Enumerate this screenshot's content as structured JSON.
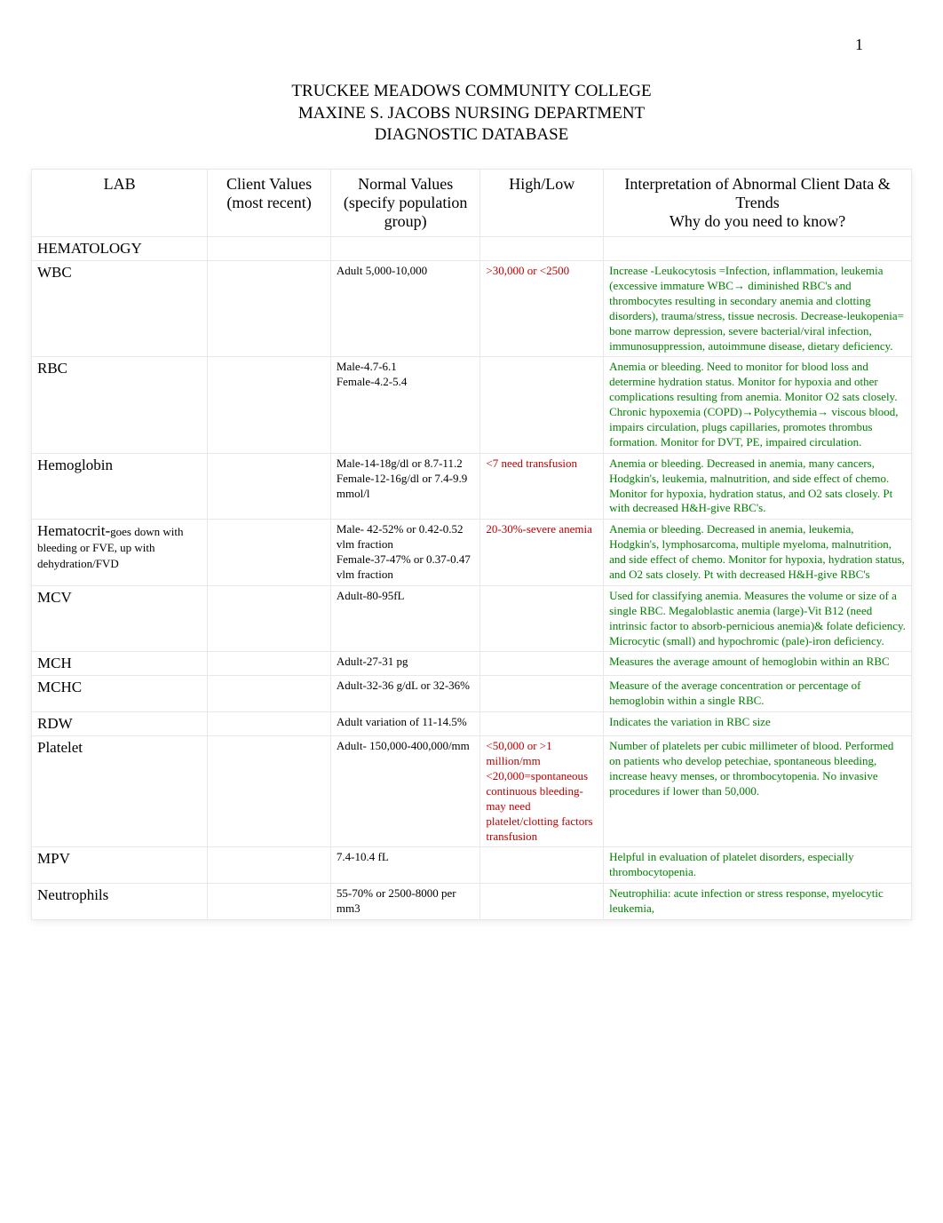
{
  "page_number": "1",
  "header": {
    "line1": "TRUCKEE MEADOWS COMMUNITY COLLEGE",
    "line2": "MAXINE S. JACOBS NURSING DEPARTMENT",
    "line3": "DIAGNOSTIC DATABASE"
  },
  "columns": {
    "lab": "LAB",
    "client": "Client Values (most recent)",
    "normal": "Normal Values (specify population group)",
    "highlow": "High/Low",
    "interp": "Interpretation of Abnormal Client Data & Trends\nWhy do you need to know?"
  },
  "section_hematology": "HEMATOLOGY",
  "rows": [
    {
      "lab": "WBC",
      "lab_sub": "",
      "client": "",
      "normal": "Adult 5,000-10,000",
      "highlow": ">30,000 or <2500",
      "highlow_color": "#c00000",
      "interp": " Increase -Leukocytosis =Infection, inflammation, leukemia (excessive immature WBC→ diminished RBC's and thrombocytes resulting in secondary anemia and clotting disorders), trauma/stress, tissue necrosis. Decrease-leukopenia= bone marrow depression, severe bacterial/viral infection, immunosuppression, autoimmune disease, dietary deficiency.",
      "interp_color": "#008000"
    },
    {
      "lab": "RBC",
      "lab_sub": "",
      "client": "",
      "normal": "Male-4.7-6.1\nFemale-4.2-5.4",
      "highlow": "",
      "highlow_color": "#c00000",
      "interp": "Anemia or bleeding. Need to monitor for blood loss and determine hydration status. Monitor for hypoxia and other complications resulting from anemia. Monitor O2 sats closely.\nChronic hypoxemia (COPD)→Polycythemia→ viscous blood, impairs circulation, plugs capillaries, promotes thrombus formation. Monitor for DVT, PE, impaired circulation.",
      "interp_color": "#008000"
    },
    {
      "lab": "Hemoglobin",
      "lab_sub": "",
      "client": "",
      "normal": "Male-14-18g/dl or 8.7-11.2\nFemale-12-16g/dl or 7.4-9.9 mmol/l",
      "highlow": "<7 need transfusion",
      "highlow_color": "#c00000",
      "interp": "Anemia or bleeding. Decreased in anemia, many cancers, Hodgkin's, leukemia, malnutrition, and side effect of chemo. Monitor for hypoxia, hydration status, and O2 sats closely. Pt with decreased H&H-give RBC's.",
      "interp_color": "#008000"
    },
    {
      "lab": "Hematocrit-",
      "lab_sub": "goes down with bleeding or FVE, up with dehydration/FVD",
      "client": "",
      "normal": "Male- 42-52% or 0.42-0.52 vlm fraction\nFemale-37-47% or 0.37-0.47 vlm fraction",
      "highlow": " 20-30%-severe anemia",
      "highlow_color": "#c00000",
      "interp": "Anemia or bleeding. Decreased in anemia, leukemia, Hodgkin's, lymphosarcoma, multiple myeloma, malnutrition, and side effect of chemo. Monitor for hypoxia, hydration status, and O2 sats closely. Pt with decreased H&H-give RBC's",
      "interp_color": "#008000"
    },
    {
      "lab": "MCV",
      "lab_sub": "",
      "client": "",
      "normal": "Adult-80-95fL",
      "highlow": "",
      "highlow_color": "#c00000",
      "interp": "Used for classifying anemia. Measures the volume or size of a single RBC. Megaloblastic anemia (large)-Vit B12 (need intrinsic factor to absorb-pernicious anemia)& folate deficiency. Microcytic (small) and hypochromic (pale)-iron deficiency.",
      "interp_color": "#008000"
    },
    {
      "lab": "MCH",
      "lab_sub": "",
      "client": "",
      "normal": "Adult-27-31 pg",
      "highlow": "",
      "highlow_color": "#c00000",
      "interp": "Measures the average amount of hemoglobin within an RBC",
      "interp_color": "#008000"
    },
    {
      "lab": "MCHC",
      "lab_sub": "",
      "client": "",
      "normal": "Adult-32-36 g/dL or 32-36%",
      "highlow": "",
      "highlow_color": "#c00000",
      "interp": "Measure of the average concentration or percentage of hemoglobin within a single RBC.",
      "interp_color": "#008000"
    },
    {
      "lab": "RDW",
      "lab_sub": "",
      "client": "",
      "normal": "Adult variation of 11-14.5%",
      "highlow": "",
      "highlow_color": "#c00000",
      "interp": "Indicates the variation in RBC size",
      "interp_color": "#008000"
    },
    {
      "lab": "Platelet",
      "lab_sub": "",
      "client": "",
      "normal": "Adult- 150,000-400,000/mm",
      "highlow": "<50,000 or >1 million/mm\n<20,000=spontaneous continuous bleeding-may need platelet/clotting factors transfusion",
      "highlow_color": "#c00000",
      "interp": "Number of platelets per cubic millimeter of blood. Performed on patients who develop petechiae, spontaneous bleeding, increase heavy menses, or thrombocytopenia. No invasive procedures if lower than 50,000.",
      "interp_color": "#008000"
    },
    {
      "lab": "MPV",
      "lab_sub": "",
      "client": "",
      "normal": "7.4-10.4 fL",
      "highlow": "",
      "highlow_color": "#c00000",
      "interp": "Helpful in evaluation of platelet disorders, especially thrombocytopenia.",
      "interp_color": "#008000"
    },
    {
      "lab": "Neutrophils",
      "lab_sub": "",
      "client": "",
      "normal": "55-70% or 2500-8000 per mm3",
      "highlow": "",
      "highlow_color": "#c00000",
      "interp": "Neutrophilia: acute infection or stress response, myelocytic leukemia,",
      "interp_color": "#008000"
    }
  ],
  "styling": {
    "background_color": "#ffffff",
    "border_color": "#e8e8e8",
    "text_color": "#000000",
    "red_color": "#c00000",
    "green_color": "#008000",
    "header_fontsize": 19,
    "lab_fontsize": 17,
    "body_fontsize": 13
  }
}
